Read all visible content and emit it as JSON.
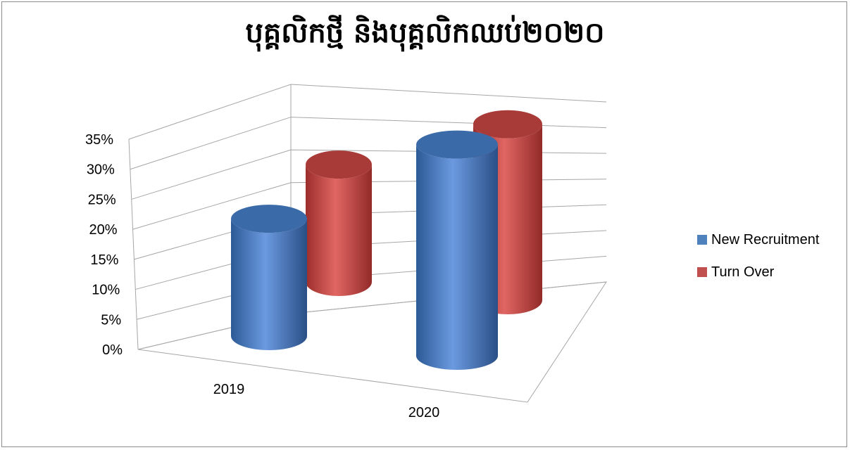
{
  "chart_data": {
    "type": "bar",
    "style": "3d-cylinder",
    "title": "បុគ្គលិកថ្មី និងបុគ្គលិកឈប់២០២០",
    "categories": [
      "2019",
      "2020"
    ],
    "series": [
      {
        "name": "New Recruitment",
        "values": [
          0.2,
          0.36
        ],
        "color": "#4f81bd"
      },
      {
        "name": "Turn Over",
        "values": [
          0.2,
          0.3
        ],
        "color": "#c0504d"
      }
    ],
    "ylim": [
      0,
      0.35
    ],
    "yticks": [
      "0%",
      "5%",
      "10%",
      "15%",
      "20%",
      "25%",
      "30%",
      "35%"
    ],
    "legend_position": "right",
    "grid": true
  }
}
